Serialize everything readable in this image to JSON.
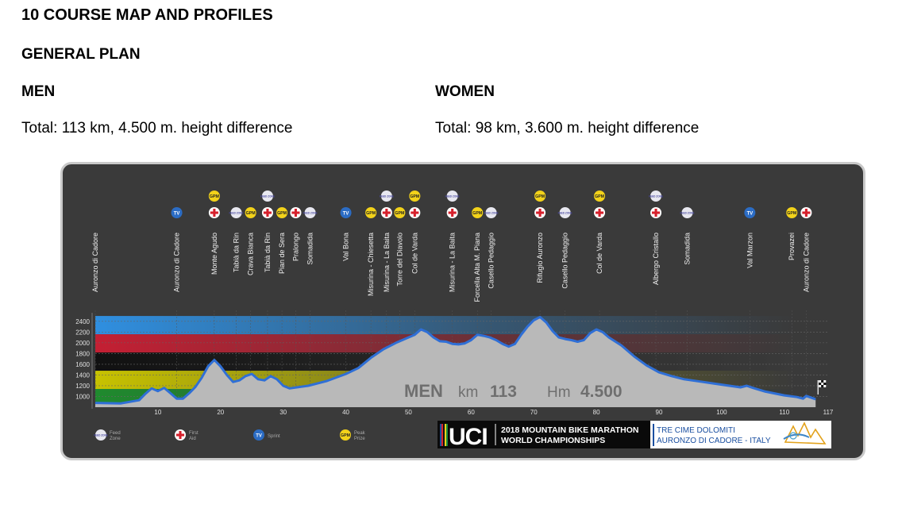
{
  "heading": "10 COURSE MAP AND PROFILES",
  "subheading": "GENERAL PLAN",
  "men": {
    "label": "MEN",
    "total": "Total: 113 km, 4.500 m. height difference"
  },
  "women": {
    "label": "WOMEN",
    "total": "Total: 98 km, 3.600 m. height difference"
  },
  "chart_data": {
    "type": "area",
    "title": "MEN km 113 Hm 4.500",
    "overlay": {
      "name": "MEN",
      "km_label": "km",
      "km_value": "113",
      "hm_label": "Hm",
      "hm_value": "4.500"
    },
    "xlim": [
      0,
      117
    ],
    "ylim": [
      800,
      2500
    ],
    "x_ticks": [
      10,
      20,
      30,
      40,
      50,
      60,
      70,
      80,
      90,
      100,
      110,
      117
    ],
    "y_ticks": [
      1000,
      1200,
      1400,
      1600,
      1800,
      2000,
      2200,
      2400
    ],
    "profile": [
      [
        0,
        880
      ],
      [
        4,
        870
      ],
      [
        7,
        930
      ],
      [
        8,
        1050
      ],
      [
        9,
        1150
      ],
      [
        10,
        1100
      ],
      [
        11,
        1160
      ],
      [
        12,
        1060
      ],
      [
        13,
        960
      ],
      [
        14,
        960
      ],
      [
        15,
        1060
      ],
      [
        16,
        1180
      ],
      [
        17,
        1350
      ],
      [
        18,
        1560
      ],
      [
        19,
        1680
      ],
      [
        20,
        1560
      ],
      [
        21,
        1400
      ],
      [
        22,
        1270
      ],
      [
        23,
        1300
      ],
      [
        24,
        1380
      ],
      [
        25,
        1420
      ],
      [
        26,
        1320
      ],
      [
        27,
        1300
      ],
      [
        28,
        1380
      ],
      [
        29,
        1320
      ],
      [
        30,
        1200
      ],
      [
        31,
        1150
      ],
      [
        34,
        1200
      ],
      [
        37,
        1290
      ],
      [
        40,
        1420
      ],
      [
        42,
        1530
      ],
      [
        44,
        1720
      ],
      [
        46,
        1880
      ],
      [
        48,
        2000
      ],
      [
        49,
        2050
      ],
      [
        50,
        2100
      ],
      [
        51,
        2150
      ],
      [
        52,
        2250
      ],
      [
        53,
        2200
      ],
      [
        54,
        2100
      ],
      [
        55,
        2030
      ],
      [
        56,
        2020
      ],
      [
        57,
        1980
      ],
      [
        58,
        1970
      ],
      [
        59,
        1990
      ],
      [
        60,
        2050
      ],
      [
        61,
        2150
      ],
      [
        62,
        2130
      ],
      [
        63,
        2100
      ],
      [
        64,
        2050
      ],
      [
        65,
        1980
      ],
      [
        66,
        1930
      ],
      [
        67,
        1980
      ],
      [
        68,
        2150
      ],
      [
        69,
        2300
      ],
      [
        70,
        2420
      ],
      [
        71,
        2480
      ],
      [
        72,
        2380
      ],
      [
        73,
        2220
      ],
      [
        74,
        2100
      ],
      [
        75,
        2070
      ],
      [
        76,
        2050
      ],
      [
        77,
        2020
      ],
      [
        78,
        2050
      ],
      [
        79,
        2180
      ],
      [
        80,
        2250
      ],
      [
        81,
        2200
      ],
      [
        82,
        2100
      ],
      [
        84,
        1950
      ],
      [
        86,
        1750
      ],
      [
        88,
        1580
      ],
      [
        90,
        1450
      ],
      [
        92,
        1380
      ],
      [
        94,
        1320
      ],
      [
        97,
        1270
      ],
      [
        100,
        1220
      ],
      [
        103,
        1170
      ],
      [
        104,
        1200
      ],
      [
        105,
        1160
      ],
      [
        107,
        1090
      ],
      [
        110,
        1020
      ],
      [
        112,
        990
      ],
      [
        113,
        960
      ],
      [
        113.5,
        1010
      ],
      [
        115,
        950
      ]
    ],
    "locations": [
      {
        "name": "Auronzo di Cadore",
        "km": 0,
        "icons": []
      },
      {
        "name": "Auronzo di Cadore",
        "km": 13,
        "icons": [
          "tv"
        ]
      },
      {
        "name": "Monte Agudo",
        "km": 19,
        "icons": [
          "aid",
          "gpm"
        ]
      },
      {
        "name": "Tabià da Rin",
        "km": 22.5,
        "icons": [
          "feed"
        ]
      },
      {
        "name": "Crava Bianca",
        "km": 24.8,
        "icons": [
          "gpm"
        ]
      },
      {
        "name": "Tabià da Rin",
        "km": 27.5,
        "icons": [
          "aid",
          "feed"
        ]
      },
      {
        "name": "Pian de Sera",
        "km": 29.8,
        "icons": [
          "gpm"
        ]
      },
      {
        "name": "Pralongo",
        "km": 32,
        "icons": [
          "aid"
        ]
      },
      {
        "name": "Somadida",
        "km": 34.3,
        "icons": [
          "feed"
        ]
      },
      {
        "name": "Val Bona",
        "km": 40,
        "icons": [
          "tv"
        ]
      },
      {
        "name": "Misurina - Chiesetta",
        "km": 44,
        "icons": [
          "gpm"
        ]
      },
      {
        "name": "Misurina - La Baita",
        "km": 46.5,
        "icons": [
          "aid",
          "feed"
        ]
      },
      {
        "name": "Torre del Diavolo",
        "km": 48.6,
        "icons": [
          "gpm"
        ]
      },
      {
        "name": "Col de Varda",
        "km": 51,
        "icons": [
          "aid",
          "gpm"
        ]
      },
      {
        "name": "Misurina - La Baita",
        "km": 57,
        "icons": [
          "aid",
          "feed"
        ]
      },
      {
        "name": "Forcella Alta M. Piana",
        "km": 61,
        "icons": [
          "gpm"
        ]
      },
      {
        "name": "Casello Pedaggio",
        "km": 63.2,
        "icons": [
          "feed"
        ]
      },
      {
        "name": "Rifugio Auronzo",
        "km": 71,
        "icons": [
          "aid",
          "gpm"
        ]
      },
      {
        "name": "Casello Pedaggio",
        "km": 75,
        "icons": [
          "feed"
        ]
      },
      {
        "name": "Col de Varda",
        "km": 80.5,
        "icons": [
          "aid",
          "gpm"
        ]
      },
      {
        "name": "Albergo Cristallo",
        "km": 89.5,
        "icons": [
          "aid",
          "feed"
        ]
      },
      {
        "name": "Somadida",
        "km": 94.5,
        "icons": [
          "feed"
        ]
      },
      {
        "name": "Val Marzon",
        "km": 104.5,
        "icons": [
          "tv"
        ]
      },
      {
        "name": "Provazei",
        "km": 111.2,
        "icons": [
          "gpm"
        ]
      },
      {
        "name": "Auronzo di Cadore",
        "km": 113.5,
        "icons": [
          "aid"
        ]
      }
    ],
    "legend": [
      {
        "icon": "feed",
        "label": "Feed\nZone"
      },
      {
        "icon": "aid",
        "label": "First\nAid"
      },
      {
        "icon": "tv",
        "label": "Sprint"
      },
      {
        "icon": "gpm",
        "label": "Peak\nPrize"
      }
    ],
    "icon_text": {
      "feed": "FEED ZONE",
      "tv": "TV",
      "gpm": "GPM"
    },
    "band_colors": [
      "#1f8a2e",
      "#c7c200",
      "#111111",
      "#c41f33",
      "#2f8fe0"
    ],
    "line_color": "#2f6fd6",
    "fill_color": "#b9b9b9"
  },
  "logo": {
    "uci": "UCI",
    "event_line1": "2018 MOUNTAIN BIKE MARATHON",
    "event_line2": "WORLD CHAMPIONSHIPS",
    "host_line1": "TRE CIME DOLOMITI",
    "host_line2": "AURONZO DI CADORE - ITALY"
  }
}
